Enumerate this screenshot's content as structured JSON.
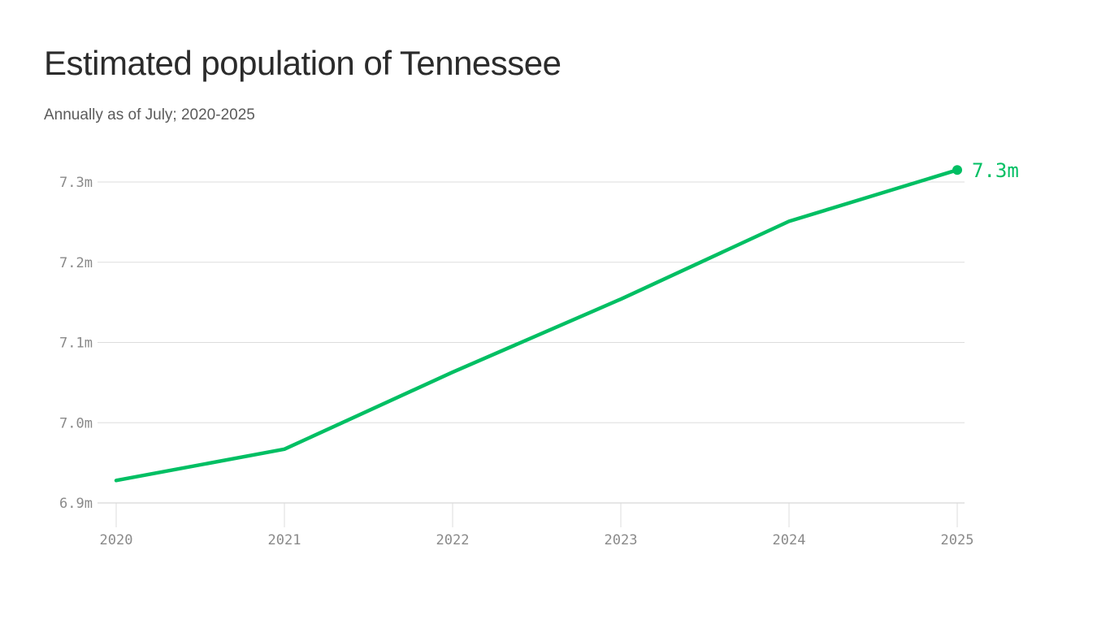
{
  "colors": {
    "line": "#00bf63",
    "grid": "#dddddd",
    "axis": "#cccccc",
    "tick_text": "#8a8a8a"
  },
  "chart_data": {
    "type": "line",
    "title": "Estimated population of Tennessee",
    "subtitle": "Annually as of July; 2020-2025",
    "x": [
      2020,
      2021,
      2022,
      2023,
      2024,
      2025
    ],
    "y_ticks": [
      6.9,
      7.0,
      7.1,
      7.2,
      7.3
    ],
    "y_tick_labels": [
      "6.9m",
      "7.0m",
      "7.1m",
      "7.2m",
      "7.3m"
    ],
    "x_tick_labels": [
      "2020",
      "2021",
      "2022",
      "2023",
      "2024",
      "2025"
    ],
    "ylim": [
      6.9,
      7.3
    ],
    "series": [
      {
        "values": [
          6.928,
          6.967,
          7.063,
          7.154,
          7.251,
          7.315
        ]
      }
    ],
    "end_label": "7.3m",
    "grid": true
  }
}
